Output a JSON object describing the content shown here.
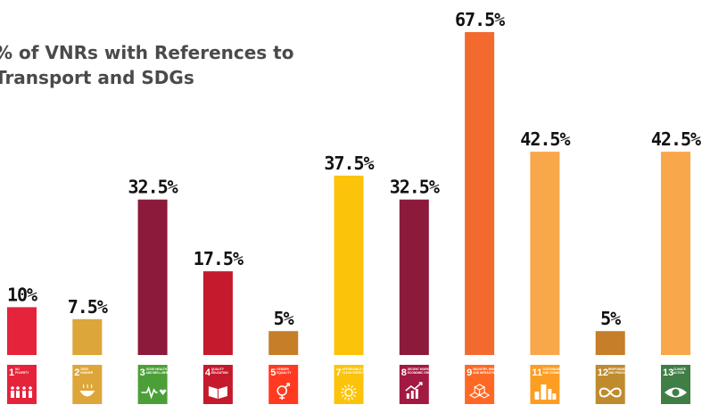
{
  "chart_data": {
    "type": "bar",
    "title": "% of VNRs with References to Transport and SDGs",
    "categories": [
      "1",
      "2",
      "3",
      "4",
      "5",
      "7",
      "8",
      "9",
      "11",
      "12",
      "13"
    ],
    "values": [
      10,
      7.5,
      32.5,
      17.5,
      5,
      37.5,
      32.5,
      67.5,
      42.5,
      5,
      42.5
    ],
    "value_labels": [
      "10%",
      "7.5%",
      "32.5%",
      "17.5%",
      "5%",
      "37.5%",
      "32.5%",
      "67.5%",
      "42.5%",
      "5%",
      "42.5%"
    ],
    "colors": [
      "#e5243b",
      "#dda63a",
      "#8c1a3b",
      "#c5192d",
      "#c67e29",
      "#fcc30b",
      "#8c1a3b",
      "#f26a2e",
      "#f9a74b",
      "#c67e29",
      "#f9a74b"
    ],
    "icon_colors": [
      "#e5243b",
      "#dda63a",
      "#4c9f38",
      "#c5192d",
      "#ff3a21",
      "#fcc30b",
      "#a21942",
      "#fd6925",
      "#fd9d24",
      "#bf8b2e",
      "#3f7e44"
    ],
    "sdg_icons": [
      {
        "number": "1",
        "text": "NO POVERTY",
        "icon": "people-icon"
      },
      {
        "number": "2",
        "text": "ZERO HUNGER",
        "icon": "bowl-icon"
      },
      {
        "number": "3",
        "text": "GOOD HEALTH AND WELL-BEING",
        "icon": "heartbeat-icon"
      },
      {
        "number": "4",
        "text": "QUALITY EDUCATION",
        "icon": "book-icon"
      },
      {
        "number": "5",
        "text": "GENDER EQUALITY",
        "icon": "gender-icon"
      },
      {
        "number": "7",
        "text": "AFFORDABLE AND CLEAN ENERGY",
        "icon": "sun-icon"
      },
      {
        "number": "8",
        "text": "DECENT WORK AND ECONOMIC GROWTH",
        "icon": "growth-chart-icon"
      },
      {
        "number": "9",
        "text": "INDUSTRY, INNOVATION AND INFRASTRUCTURE",
        "icon": "cubes-icon"
      },
      {
        "number": "11",
        "text": "SUSTAINABLE CITIES AND COMMUNITIES",
        "icon": "city-icon"
      },
      {
        "number": "12",
        "text": "RESPONSIBLE CONSUMPTION AND PRODUCTION",
        "icon": "infinity-icon"
      },
      {
        "number": "13",
        "text": "CLIMATE ACTION",
        "icon": "eye-globe-icon"
      }
    ],
    "ylim": [
      0,
      67.5
    ],
    "grid": false,
    "legend": "none"
  }
}
